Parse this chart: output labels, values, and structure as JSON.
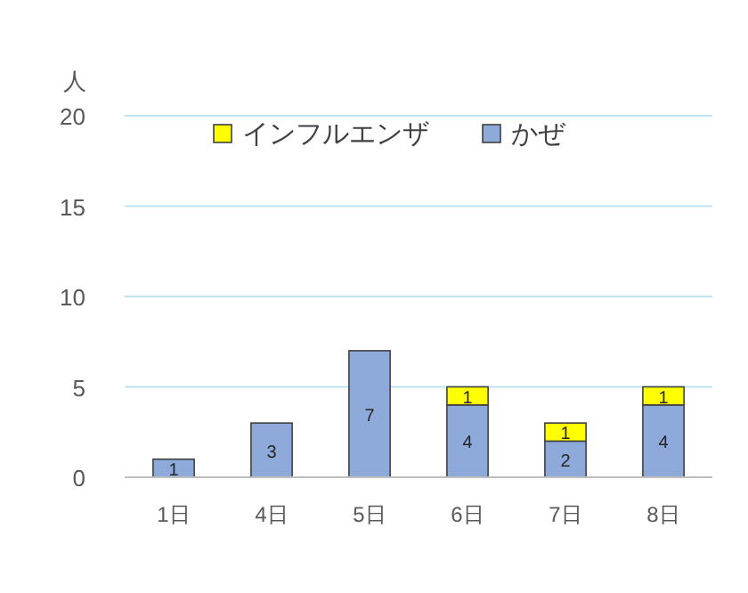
{
  "chart_data": {
    "type": "bar",
    "ylabel": "人",
    "categories": [
      "1日",
      "4日",
      "5日",
      "6日",
      "7日",
      "8日"
    ],
    "series": [
      {
        "name": "かぜ",
        "color": "#8eaadb",
        "values": [
          1,
          3,
          7,
          4,
          2,
          4
        ]
      },
      {
        "name": "インフルエンザ",
        "color": "#ffff00",
        "values": [
          null,
          null,
          null,
          1,
          1,
          1
        ]
      }
    ],
    "stacked": true,
    "ylim": [
      0,
      20
    ],
    "yticks": [
      0,
      5,
      10,
      15,
      20
    ],
    "grid": "y",
    "legend": "top",
    "data_labels": true
  }
}
